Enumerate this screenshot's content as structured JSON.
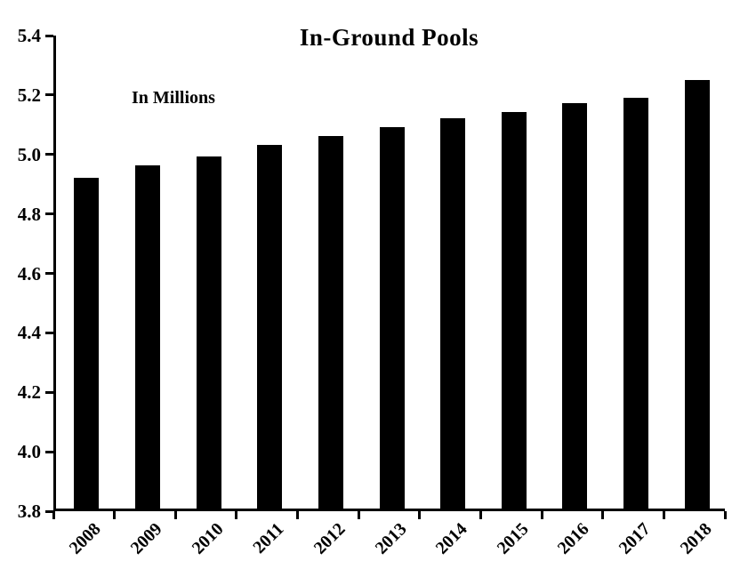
{
  "chart_data": {
    "type": "bar",
    "title": "In-Ground Pools",
    "annotation": "In Millions",
    "categories": [
      "2008",
      "2009",
      "2010",
      "2011",
      "2012",
      "2013",
      "2014",
      "2015",
      "2016",
      "2017",
      "2018"
    ],
    "values": [
      4.92,
      4.96,
      4.99,
      5.03,
      5.06,
      5.09,
      5.12,
      5.14,
      5.17,
      5.19,
      5.25
    ],
    "xlabel": "",
    "ylabel": "",
    "ylim": [
      3.8,
      5.4
    ],
    "ytick_step": 0.2,
    "ytick_labels": [
      "3.8",
      "4.0",
      "4.2",
      "4.4",
      "4.6",
      "4.8",
      "5.0",
      "5.2",
      "5.4"
    ],
    "bar_color": "#000000",
    "background": "#ffffff",
    "grid": false,
    "legend": "none"
  }
}
